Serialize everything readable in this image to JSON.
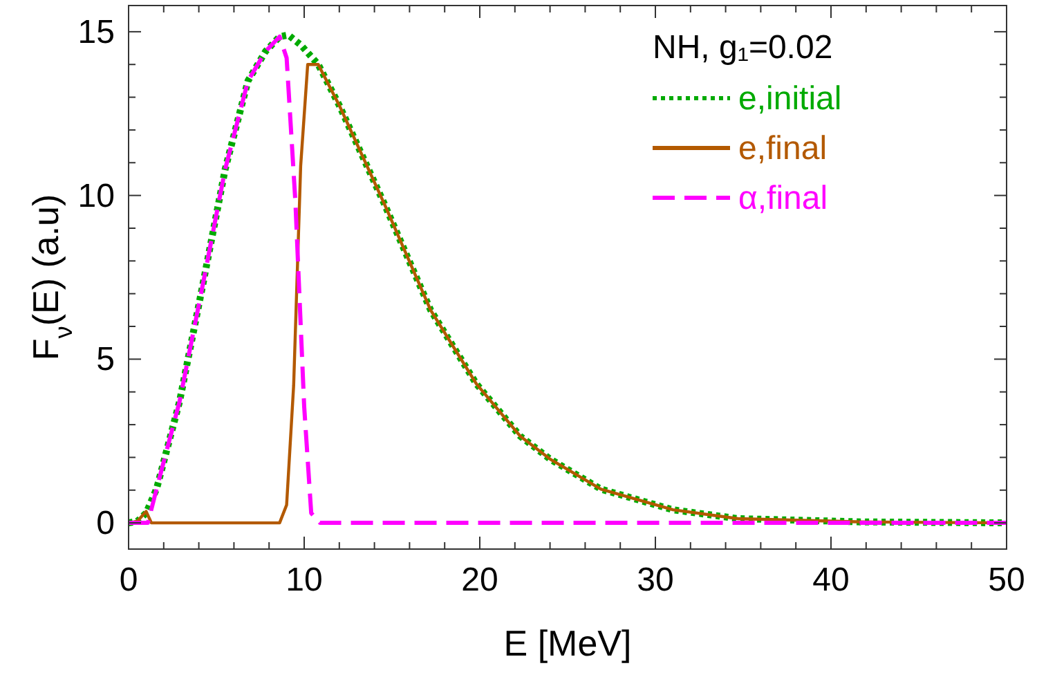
{
  "chart_data": {
    "type": "line",
    "xlabel": "E [MeV]",
    "ylabel": "F$_{ν}$(E) (a.u)",
    "legend_title": "NH, g₁=0.02",
    "legend": "top right",
    "grid": false,
    "xlim": [
      0,
      50
    ],
    "ylim": [
      -0.8,
      15.8
    ],
    "xticks": [
      0,
      {
        "value": 2,
        "label": null
      },
      {
        "value": 4,
        "label": null
      },
      {
        "value": 6,
        "label": null
      },
      {
        "value": 8,
        "label": null
      },
      10,
      {
        "value": 12,
        "label": null
      },
      {
        "value": 14,
        "label": null
      },
      {
        "value": 16,
        "label": null
      },
      {
        "value": 18,
        "label": null
      },
      20,
      {
        "value": 22,
        "label": null
      },
      {
        "value": 24,
        "label": null
      },
      {
        "value": 26,
        "label": null
      },
      {
        "value": 28,
        "label": null
      },
      30,
      {
        "value": 32,
        "label": null
      },
      {
        "value": 34,
        "label": null
      },
      {
        "value": 36,
        "label": null
      },
      {
        "value": 38,
        "label": null
      },
      40,
      {
        "value": 42,
        "label": null
      },
      {
        "value": 44,
        "label": null
      },
      {
        "value": 46,
        "label": null
      },
      {
        "value": 48,
        "label": null
      },
      50
    ],
    "yticks": [
      0,
      {
        "value": 1,
        "label": null
      },
      {
        "value": 2,
        "label": null
      },
      {
        "value": 3,
        "label": null
      },
      {
        "value": 4,
        "label": null
      },
      5,
      {
        "value": 6,
        "label": null
      },
      {
        "value": 7,
        "label": null
      },
      {
        "value": 8,
        "label": null
      },
      {
        "value": 9,
        "label": null
      },
      10,
      {
        "value": 11,
        "label": null
      },
      {
        "value": 12,
        "label": null
      },
      {
        "value": 13,
        "label": null
      },
      {
        "value": 14,
        "label": null
      },
      15
    ],
    "series": [
      {
        "name": "e,initial",
        "color": "#00aa00",
        "line_style": "dotted",
        "x": [
          0,
          0.5,
          1,
          1.6,
          2.9,
          4.2,
          5.5,
          6.8,
          7.8,
          8.6,
          9.1,
          9.8,
          10.8,
          12.0,
          14.6,
          17.2,
          19.8,
          22.3,
          24.0,
          26.9,
          31.0,
          34.7,
          41.8,
          50
        ],
        "values": [
          0,
          0.05,
          0.3,
          1.05,
          3.7,
          7.2,
          10.8,
          13.5,
          14.4,
          14.85,
          14.9,
          14.6,
          14.0,
          12.75,
          9.7,
          6.5,
          4.25,
          2.65,
          1.95,
          1.03,
          0.4,
          0.13,
          0.03,
          0
        ]
      },
      {
        "name": "e,final",
        "color": "#b35900",
        "line_style": "solid",
        "x": [
          0,
          0.5,
          1.0,
          1.3,
          8.6,
          9.0,
          9.4,
          9.8,
          10.2,
          10.8,
          12.0,
          14.6,
          17.2,
          19.8,
          22.3,
          24.0,
          26.9,
          31.0,
          34.7,
          41.8,
          50
        ],
        "values": [
          0,
          0.05,
          0.35,
          0,
          0,
          0.55,
          4.2,
          10.9,
          14.0,
          14.0,
          12.75,
          9.7,
          6.5,
          4.25,
          2.65,
          1.95,
          1.03,
          0.4,
          0.13,
          0.03,
          0
        ]
      },
      {
        "name": "α,final",
        "color": "#ff00ff",
        "line_style": "dashed",
        "x": [
          0,
          1.1,
          1.6,
          2.9,
          4.2,
          5.5,
          6.8,
          7.8,
          8.6,
          9.0,
          9.5,
          10.0,
          10.4,
          10.9,
          50
        ],
        "values": [
          0,
          0,
          1.05,
          3.7,
          7.2,
          10.8,
          13.5,
          14.4,
          14.85,
          14.2,
          9.8,
          3.55,
          0.3,
          0,
          0
        ]
      }
    ]
  }
}
